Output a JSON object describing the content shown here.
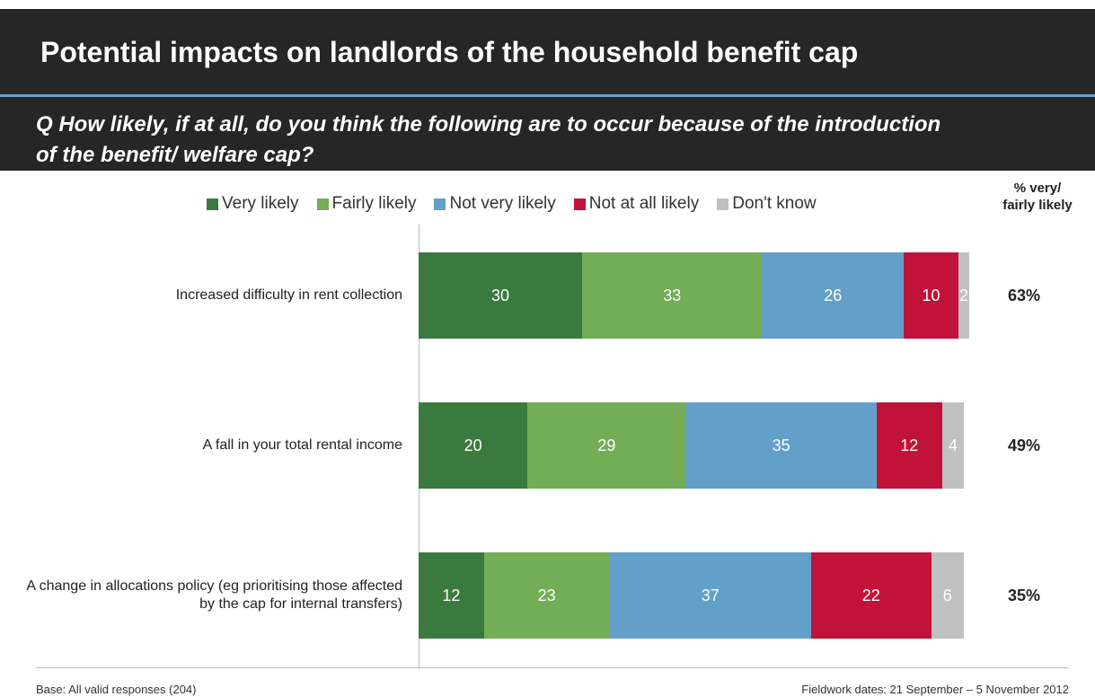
{
  "title": "Potential impacts on landlords of the household benefit cap",
  "chart_data": {
    "type": "stacked-bar-horizontal",
    "subtitle": "Q How likely, if at all, do you think the following are to occur because of the introduction of the benefit/ welfare cap?",
    "categories": [
      "Increased difficulty in rent collection",
      "A fall in your total rental income",
      "A change in allocations policy (eg prioritising those affected by the cap for internal transfers)"
    ],
    "series": [
      {
        "name": "Very likely",
        "color": "#3b7a3e",
        "values": [
          30,
          20,
          12
        ]
      },
      {
        "name": "Fairly likely",
        "color": "#73ad56",
        "values": [
          33,
          29,
          23
        ]
      },
      {
        "name": "Not very likely",
        "color": "#629fc9",
        "values": [
          26,
          35,
          37
        ]
      },
      {
        "name": "Not at all likely",
        "color": "#c1133a",
        "values": [
          10,
          12,
          22
        ]
      },
      {
        "name": "Don't know",
        "color": "#c0c0c0",
        "values": [
          2,
          4,
          6
        ]
      }
    ],
    "xlim": [
      0,
      100
    ],
    "net_header": "% very/ fairly likely",
    "net_values": [
      63,
      49,
      35
    ],
    "net_value_labels": [
      "63%",
      "49%",
      "35%"
    ]
  },
  "footer": {
    "base": "Base: All valid responses (204)",
    "fieldwork": "Fieldwork dates: 21 September – 5 November 2012"
  }
}
